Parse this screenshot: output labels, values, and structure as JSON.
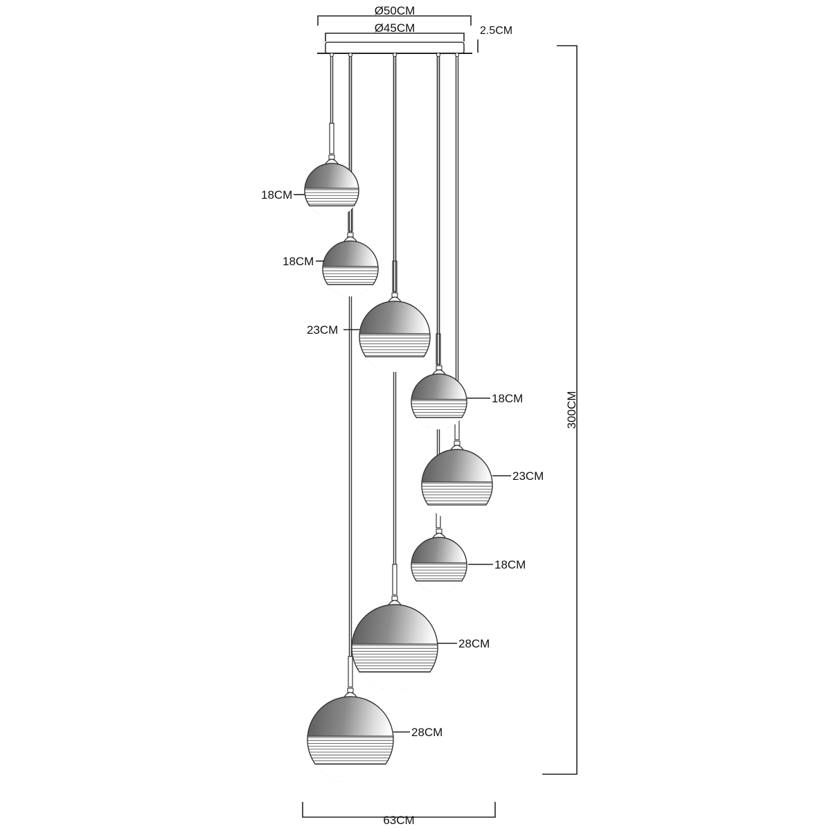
{
  "dimensions": {
    "canopy_outer_diameter": "Ø50CM",
    "canopy_inner_diameter": "Ø45CM",
    "canopy_height": "2.5CM",
    "total_height": "300CM",
    "total_width": "63CM"
  },
  "shades": [
    {
      "id": "shade-1",
      "size": "18CM"
    },
    {
      "id": "shade-2",
      "size": "18CM"
    },
    {
      "id": "shade-3",
      "size": "23CM"
    },
    {
      "id": "shade-4",
      "size": "18CM"
    },
    {
      "id": "shade-5",
      "size": "23CM"
    },
    {
      "id": "shade-6",
      "size": "18CM"
    },
    {
      "id": "shade-7",
      "size": "28CM"
    },
    {
      "id": "shade-8",
      "size": "28CM"
    }
  ],
  "colors": {
    "line": "#333333",
    "glass_dark": "#555555",
    "glass_light": "#ffffff"
  }
}
